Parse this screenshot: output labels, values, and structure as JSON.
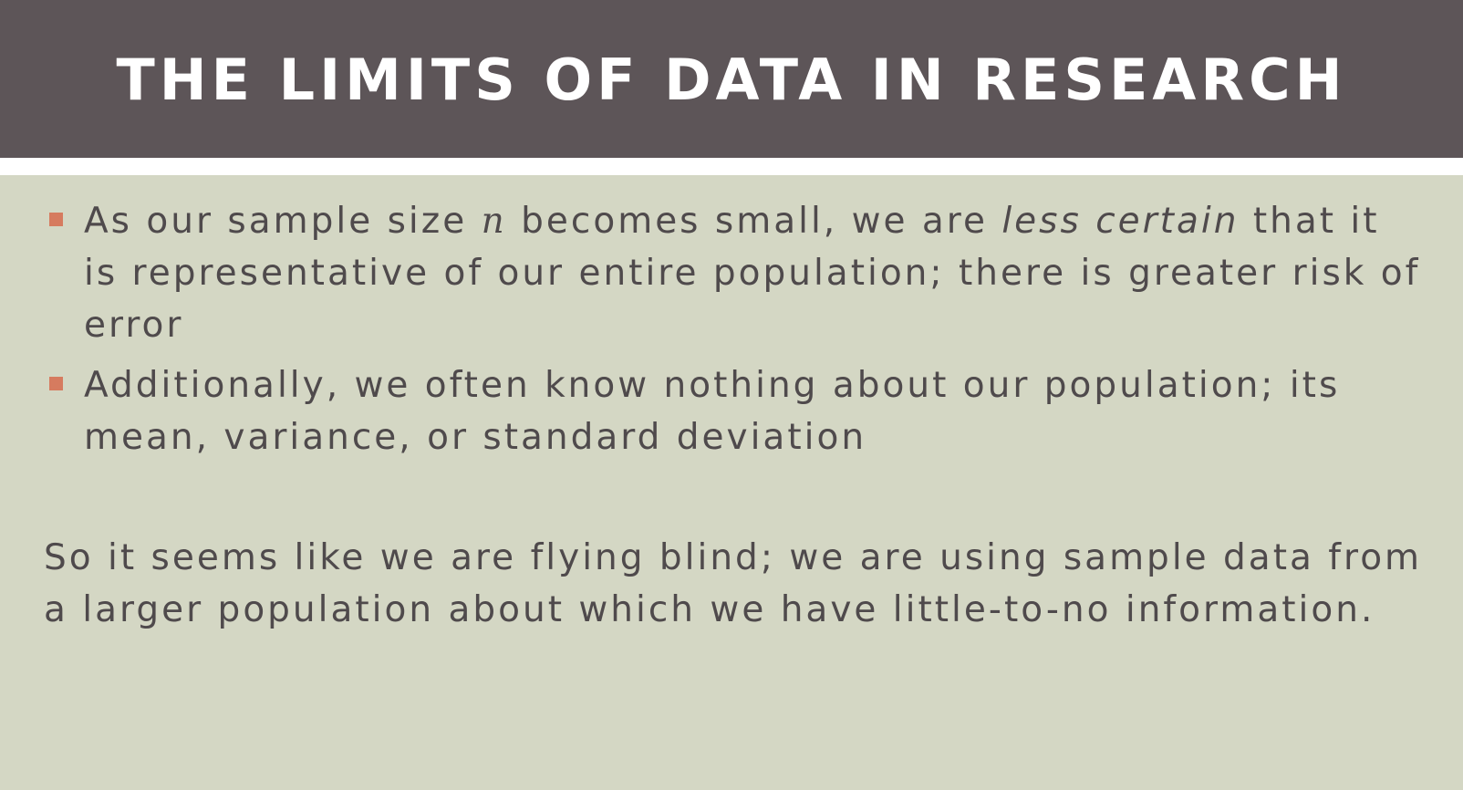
{
  "slide": {
    "title": "THE LIMITS OF DATA IN RESEARCH",
    "bullets": [
      {
        "part1": "As our sample size ",
        "math_var": "n",
        "part2": " becomes small, we are ",
        "emphasis": "less certain",
        "part3": " that it is representative of our entire population; there is greater risk of error"
      },
      {
        "text": "Additionally, we often know nothing about our population; its mean, variance, or standard deviation"
      }
    ],
    "closing": "So it seems like we are flying blind; we are using sample data from a larger population about which we have little-to-no information.",
    "bullet_color": "#d67b5f"
  },
  "colors": {
    "title_bar": "#5d5558",
    "background": "#d4d7c4",
    "text": "#4f4a4c",
    "title_text": "#ffffff"
  }
}
